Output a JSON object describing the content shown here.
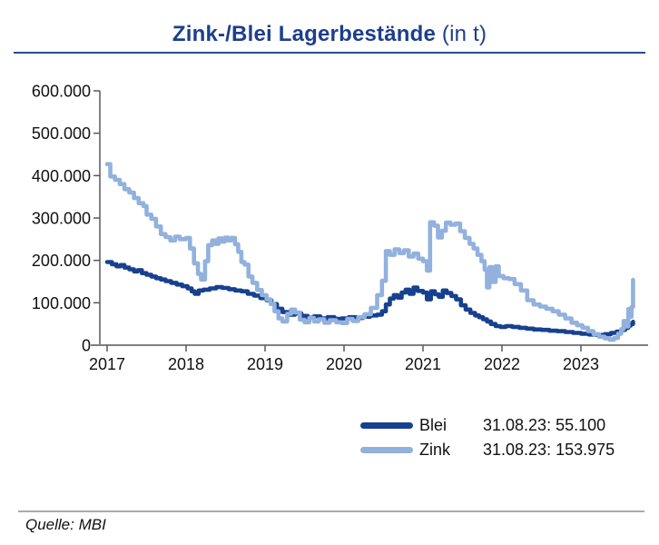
{
  "header": {
    "title_main": "Zink-/Blei Lagerbestände",
    "title_suffix": " (in t)"
  },
  "footer": {
    "source": "Quelle: MBI"
  },
  "legend": {
    "entries": [
      {
        "label": "Blei",
        "color": "#17418f",
        "annotation": "31.08.23: 55.100"
      },
      {
        "label": "Zink",
        "color": "#92b1dd",
        "annotation": "31.08.23: 153.975"
      }
    ]
  },
  "chart_data": {
    "type": "line",
    "title": "Zink-/Blei Lagerbestände (in t)",
    "xlabel": "",
    "ylabel": "",
    "unit": "t",
    "grid": false,
    "legend_position": "bottom-right",
    "ylim": [
      0,
      600000
    ],
    "xlim": [
      2017,
      2023.75
    ],
    "interpolation": "step-after",
    "axis_color": "#595959",
    "baseline_color": "#7f7f7f",
    "y_ticks": [
      {
        "value": 600000,
        "label": "600.000"
      },
      {
        "value": 500000,
        "label": "500.000"
      },
      {
        "value": 400000,
        "label": "400.000"
      },
      {
        "value": 300000,
        "label": "300.000"
      },
      {
        "value": 200000,
        "label": "200.000"
      },
      {
        "value": 100000,
        "label": "100.000"
      },
      {
        "value": 0,
        "label": "0"
      }
    ],
    "x_ticks": [
      {
        "value": 2017,
        "label": "2017"
      },
      {
        "value": 2018,
        "label": "2018"
      },
      {
        "value": 2019,
        "label": "2019"
      },
      {
        "value": 2020,
        "label": "2020"
      },
      {
        "value": 2021,
        "label": "2021"
      },
      {
        "value": 2022,
        "label": "2022"
      },
      {
        "value": 2023,
        "label": "2023"
      }
    ],
    "as_of": "31.08.23",
    "series": [
      {
        "name": "Blei",
        "color": "#17418f",
        "last_value": 55100,
        "points": [
          [
            2017.0,
            196000
          ],
          [
            2017.06,
            191000
          ],
          [
            2017.12,
            186000
          ],
          [
            2017.17,
            189000
          ],
          [
            2017.22,
            183000
          ],
          [
            2017.28,
            179000
          ],
          [
            2017.34,
            174000
          ],
          [
            2017.39,
            177000
          ],
          [
            2017.44,
            170000
          ],
          [
            2017.5,
            166000
          ],
          [
            2017.56,
            162000
          ],
          [
            2017.62,
            158000
          ],
          [
            2017.68,
            155000
          ],
          [
            2017.74,
            151000
          ],
          [
            2017.81,
            147000
          ],
          [
            2017.88,
            143000
          ],
          [
            2017.95,
            139000
          ],
          [
            2018.02,
            134000
          ],
          [
            2018.07,
            127000
          ],
          [
            2018.11,
            121000
          ],
          [
            2018.16,
            129000
          ],
          [
            2018.22,
            131000
          ],
          [
            2018.3,
            134000
          ],
          [
            2018.38,
            137000
          ],
          [
            2018.46,
            135000
          ],
          [
            2018.54,
            132000
          ],
          [
            2018.62,
            129000
          ],
          [
            2018.7,
            127000
          ],
          [
            2018.78,
            121000
          ],
          [
            2018.86,
            117000
          ],
          [
            2018.94,
            111000
          ],
          [
            2019.02,
            106000
          ],
          [
            2019.08,
            97000
          ],
          [
            2019.15,
            86000
          ],
          [
            2019.22,
            78000
          ],
          [
            2019.3,
            72000
          ],
          [
            2019.38,
            75000
          ],
          [
            2019.46,
            69000
          ],
          [
            2019.54,
            65000
          ],
          [
            2019.62,
            68000
          ],
          [
            2019.7,
            63000
          ],
          [
            2019.79,
            66000
          ],
          [
            2019.88,
            62000
          ],
          [
            2019.97,
            63000
          ],
          [
            2020.06,
            66000
          ],
          [
            2020.15,
            64000
          ],
          [
            2020.24,
            67000
          ],
          [
            2020.33,
            70000
          ],
          [
            2020.42,
            72000
          ],
          [
            2020.48,
            80000
          ],
          [
            2020.53,
            96000
          ],
          [
            2020.58,
            110000
          ],
          [
            2020.63,
            118000
          ],
          [
            2020.68,
            112000
          ],
          [
            2020.73,
            124000
          ],
          [
            2020.78,
            131000
          ],
          [
            2020.83,
            121000
          ],
          [
            2020.88,
            136000
          ],
          [
            2020.93,
            128000
          ],
          [
            2021.0,
            124000
          ],
          [
            2021.05,
            108000
          ],
          [
            2021.1,
            127000
          ],
          [
            2021.15,
            120000
          ],
          [
            2021.2,
            114000
          ],
          [
            2021.25,
            129000
          ],
          [
            2021.3,
            123000
          ],
          [
            2021.36,
            116000
          ],
          [
            2021.42,
            108000
          ],
          [
            2021.48,
            94000
          ],
          [
            2021.54,
            84000
          ],
          [
            2021.6,
            76000
          ],
          [
            2021.66,
            70000
          ],
          [
            2021.71,
            66000
          ],
          [
            2021.76,
            61000
          ],
          [
            2021.81,
            56000
          ],
          [
            2021.86,
            50000
          ],
          [
            2021.92,
            45000
          ],
          [
            2021.98,
            43000
          ],
          [
            2022.05,
            45000
          ],
          [
            2022.13,
            43000
          ],
          [
            2022.22,
            41000
          ],
          [
            2022.31,
            39000
          ],
          [
            2022.4,
            37000
          ],
          [
            2022.5,
            36000
          ],
          [
            2022.6,
            34000
          ],
          [
            2022.7,
            33000
          ],
          [
            2022.8,
            31000
          ],
          [
            2022.9,
            29000
          ],
          [
            2023.0,
            27000
          ],
          [
            2023.1,
            25000
          ],
          [
            2023.2,
            24000
          ],
          [
            2023.3,
            26000
          ],
          [
            2023.38,
            29000
          ],
          [
            2023.45,
            32000
          ],
          [
            2023.51,
            36000
          ],
          [
            2023.56,
            41000
          ],
          [
            2023.6,
            46000
          ],
          [
            2023.63,
            50000
          ],
          [
            2023.66,
            55100
          ]
        ]
      },
      {
        "name": "Zink",
        "color": "#92b1dd",
        "last_value": 153975,
        "points": [
          [
            2017.0,
            427000
          ],
          [
            2017.04,
            398000
          ],
          [
            2017.1,
            390000
          ],
          [
            2017.16,
            380000
          ],
          [
            2017.22,
            368000
          ],
          [
            2017.28,
            360000
          ],
          [
            2017.34,
            347000
          ],
          [
            2017.4,
            335000
          ],
          [
            2017.46,
            328000
          ],
          [
            2017.5,
            308000
          ],
          [
            2017.56,
            298000
          ],
          [
            2017.62,
            280000
          ],
          [
            2017.68,
            262000
          ],
          [
            2017.74,
            255000
          ],
          [
            2017.8,
            247000
          ],
          [
            2017.86,
            256000
          ],
          [
            2017.92,
            250000
          ],
          [
            2018.0,
            253000
          ],
          [
            2018.05,
            228000
          ],
          [
            2018.1,
            193000
          ],
          [
            2018.15,
            168000
          ],
          [
            2018.19,
            155000
          ],
          [
            2018.24,
            198000
          ],
          [
            2018.28,
            236000
          ],
          [
            2018.33,
            247000
          ],
          [
            2018.37,
            239000
          ],
          [
            2018.41,
            252000
          ],
          [
            2018.45,
            244000
          ],
          [
            2018.49,
            254000
          ],
          [
            2018.53,
            247000
          ],
          [
            2018.57,
            253000
          ],
          [
            2018.62,
            238000
          ],
          [
            2018.66,
            220000
          ],
          [
            2018.7,
            196000
          ],
          [
            2018.74,
            190000
          ],
          [
            2018.79,
            162000
          ],
          [
            2018.84,
            147000
          ],
          [
            2018.9,
            130000
          ],
          [
            2018.96,
            118000
          ],
          [
            2019.02,
            108000
          ],
          [
            2019.07,
            97000
          ],
          [
            2019.12,
            80000
          ],
          [
            2019.17,
            63000
          ],
          [
            2019.22,
            56000
          ],
          [
            2019.28,
            74000
          ],
          [
            2019.33,
            84000
          ],
          [
            2019.38,
            77000
          ],
          [
            2019.44,
            60000
          ],
          [
            2019.5,
            54000
          ],
          [
            2019.56,
            64000
          ],
          [
            2019.62,
            56000
          ],
          [
            2019.68,
            61000
          ],
          [
            2019.75,
            53000
          ],
          [
            2019.82,
            59000
          ],
          [
            2019.9,
            54000
          ],
          [
            2019.97,
            52000
          ],
          [
            2020.04,
            62000
          ],
          [
            2020.11,
            57000
          ],
          [
            2020.18,
            66000
          ],
          [
            2020.26,
            73000
          ],
          [
            2020.34,
            88000
          ],
          [
            2020.42,
            118000
          ],
          [
            2020.48,
            152000
          ],
          [
            2020.53,
            222000
          ],
          [
            2020.58,
            213000
          ],
          [
            2020.64,
            226000
          ],
          [
            2020.7,
            217000
          ],
          [
            2020.76,
            224000
          ],
          [
            2020.82,
            209000
          ],
          [
            2020.88,
            216000
          ],
          [
            2020.94,
            204000
          ],
          [
            2021.0,
            198000
          ],
          [
            2021.05,
            176000
          ],
          [
            2021.09,
            290000
          ],
          [
            2021.14,
            282000
          ],
          [
            2021.19,
            254000
          ],
          [
            2021.24,
            270000
          ],
          [
            2021.29,
            289000
          ],
          [
            2021.35,
            284000
          ],
          [
            2021.41,
            287000
          ],
          [
            2021.47,
            269000
          ],
          [
            2021.53,
            253000
          ],
          [
            2021.59,
            239000
          ],
          [
            2021.64,
            228000
          ],
          [
            2021.69,
            213000
          ],
          [
            2021.74,
            198000
          ],
          [
            2021.78,
            178000
          ],
          [
            2021.81,
            136000
          ],
          [
            2021.84,
            184000
          ],
          [
            2021.88,
            149000
          ],
          [
            2021.92,
            186000
          ],
          [
            2021.96,
            163000
          ],
          [
            2022.02,
            158000
          ],
          [
            2022.09,
            156000
          ],
          [
            2022.16,
            144000
          ],
          [
            2022.24,
            129000
          ],
          [
            2022.32,
            106000
          ],
          [
            2022.4,
            96000
          ],
          [
            2022.48,
            91000
          ],
          [
            2022.56,
            86000
          ],
          [
            2022.64,
            80000
          ],
          [
            2022.72,
            72000
          ],
          [
            2022.8,
            63000
          ],
          [
            2022.88,
            53000
          ],
          [
            2022.95,
            47000
          ],
          [
            2023.02,
            41000
          ],
          [
            2023.09,
            33000
          ],
          [
            2023.16,
            26000
          ],
          [
            2023.23,
            20000
          ],
          [
            2023.3,
            16000
          ],
          [
            2023.36,
            13000
          ],
          [
            2023.42,
            17000
          ],
          [
            2023.47,
            27000
          ],
          [
            2023.51,
            38000
          ],
          [
            2023.54,
            57000
          ],
          [
            2023.57,
            44000
          ],
          [
            2023.6,
            85000
          ],
          [
            2023.62,
            67000
          ],
          [
            2023.64,
            90000
          ],
          [
            2023.66,
            153975
          ]
        ]
      }
    ]
  }
}
